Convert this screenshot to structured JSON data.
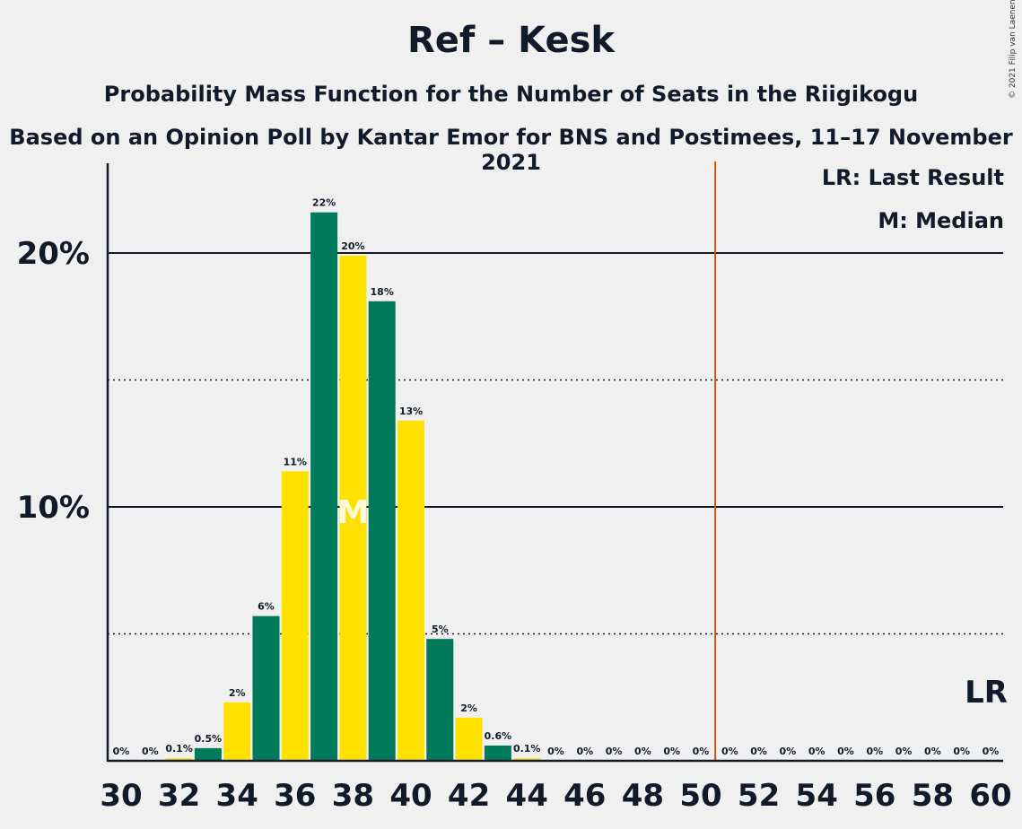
{
  "title": "Ref – Kesk",
  "subtitle": "Probability Mass Function for the Number of Seats in the Riigikogu",
  "subtitle2": "Based on an Opinion Poll by Kantar Emor for BNS and Postimees, 11–17 November 2021",
  "copyright": "© 2021 Filip van Laenen",
  "legend": {
    "last_result": "LR: Last Result",
    "median": "M: Median"
  },
  "lr_label": "LR",
  "median_label": "M",
  "colors": {
    "green": "#007a5a",
    "yellow": "#ffe100",
    "majority_line": "#c05a10",
    "text": "#111a2a",
    "background": "#f0f0f0"
  },
  "chart_data": {
    "type": "bar",
    "title": "Ref – Kesk",
    "xlabel": "",
    "ylabel": "",
    "ylim": [
      0,
      23.5
    ],
    "x": [
      30,
      31,
      32,
      33,
      34,
      35,
      36,
      37,
      38,
      39,
      40,
      41,
      42,
      43,
      44,
      45,
      46,
      47,
      48,
      49,
      50,
      51,
      52,
      53,
      54,
      55,
      56,
      57,
      58,
      59,
      60
    ],
    "values": [
      0,
      0,
      0.1,
      0.5,
      2.3,
      5.7,
      11.4,
      21.6,
      19.9,
      18.1,
      13.4,
      4.8,
      1.7,
      0.6,
      0.1,
      0,
      0,
      0,
      0,
      0,
      0,
      0,
      0,
      0,
      0,
      0,
      0,
      0,
      0,
      0,
      0
    ],
    "labels": [
      "0%",
      "0%",
      "0.1%",
      "0.5%",
      "2%",
      "6%",
      "11%",
      "22%",
      "20%",
      "18%",
      "13%",
      "5%",
      "2%",
      "0.6%",
      "0.1%",
      "0%",
      "0%",
      "0%",
      "0%",
      "0%",
      "0%",
      "0%",
      "0%",
      "0%",
      "0%",
      "0%",
      "0%",
      "0%",
      "0%",
      "0%",
      "0%"
    ],
    "x_tick_labels": [
      "30",
      "32",
      "34",
      "36",
      "38",
      "40",
      "42",
      "44",
      "46",
      "48",
      "50",
      "52",
      "54",
      "56",
      "58",
      "60"
    ],
    "y_ticks": [
      {
        "value": 10,
        "label": "10%"
      },
      {
        "value": 20,
        "label": "20%"
      }
    ],
    "y_minor_gridlines": [
      5,
      15
    ],
    "median": 38,
    "last_result": 60,
    "majority_threshold": 50.5,
    "bar_colors_alternate": [
      "green",
      "yellow"
    ]
  }
}
